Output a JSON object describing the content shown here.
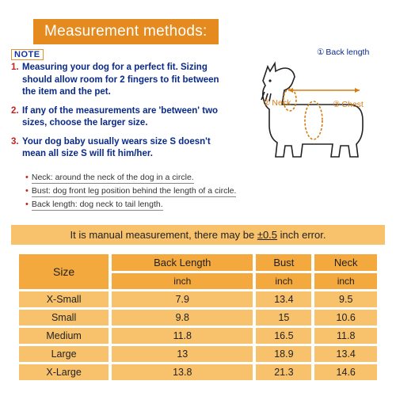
{
  "colors": {
    "orange": "#e58a1f",
    "orange_light": "#f4a93f",
    "orange_pale": "#f8c26c",
    "blue_text": "#0a2a88",
    "red_accent": "#c52020",
    "callout_orange": "#d97a10"
  },
  "header": {
    "title": "Measurement methods:"
  },
  "note_label": "NOTE",
  "notes": [
    {
      "num": "1.",
      "text": "Measuring your dog for a perfect fit. Sizing should allow room for 2 fingers to fit between the item and the pet."
    },
    {
      "num": "2.",
      "text": "If any of the measurements are 'between' two sizes, choose the larger size."
    },
    {
      "num": "3.",
      "text": "Your dog baby usually wears size S doesn't mean all size S will fit him/her."
    }
  ],
  "callouts": {
    "back": {
      "num": "①",
      "label": "Back length"
    },
    "neck": {
      "num": "②",
      "label": "Neck"
    },
    "chest": {
      "num": "③",
      "label": "Chest"
    }
  },
  "definitions": [
    "Neck: around the neck of the dog in a circle.",
    "Bust: dog front leg position behind the length of a circle.",
    "Back length: dog neck to tail length."
  ],
  "warning": {
    "pre": "It is manual measurement, there may be ",
    "err": "±0.5",
    "post": " inch error."
  },
  "table": {
    "size_header": "Size",
    "columns": [
      {
        "top": "Back Length",
        "sub": "inch"
      },
      {
        "top": "Bust",
        "sub": "inch"
      },
      {
        "top": "Neck",
        "sub": "inch"
      }
    ],
    "rows": [
      {
        "size": "X-Small",
        "v": [
          "7.9",
          "13.4",
          "9.5"
        ]
      },
      {
        "size": "Small",
        "v": [
          "9.8",
          "15",
          "10.6"
        ]
      },
      {
        "size": "Medium",
        "v": [
          "11.8",
          "16.5",
          "11.8"
        ]
      },
      {
        "size": "Large",
        "v": [
          "13",
          "18.9",
          "13.4"
        ]
      },
      {
        "size": "X-Large",
        "v": [
          "13.8",
          "21.3",
          "14.6"
        ]
      }
    ]
  }
}
